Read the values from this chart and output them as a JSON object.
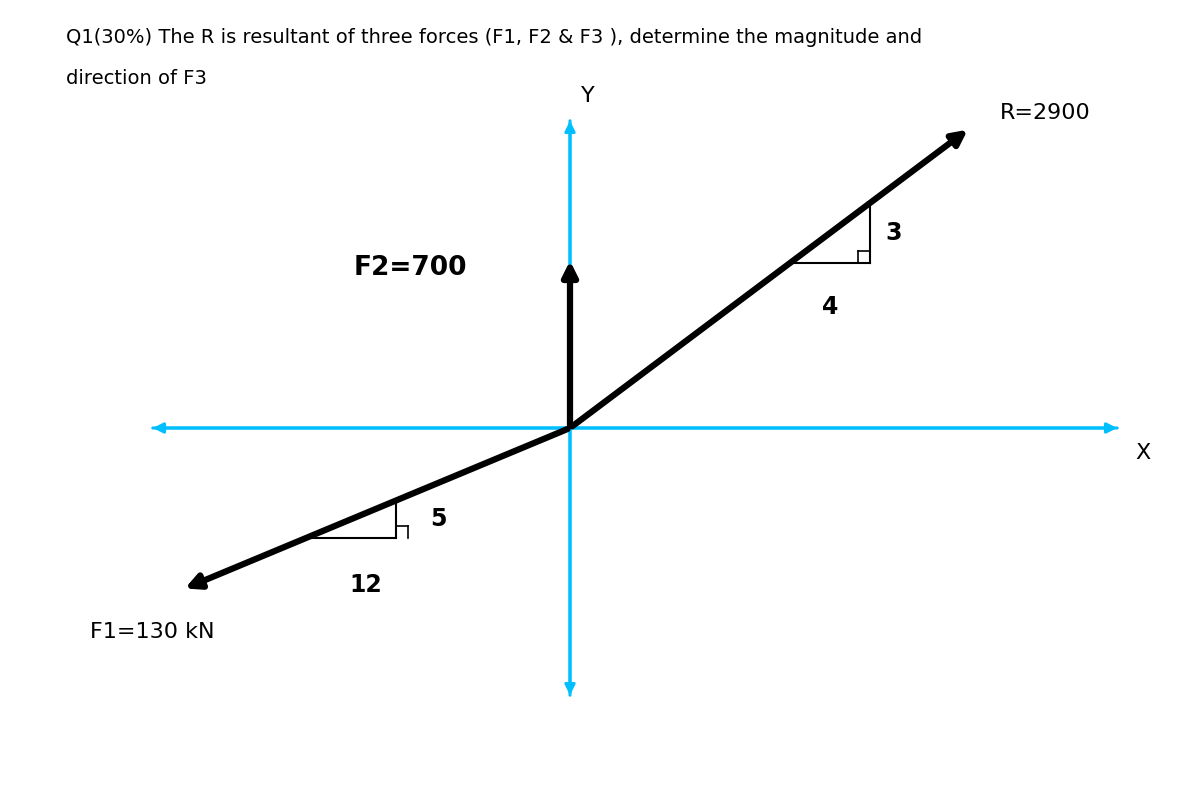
{
  "title_line1": "Q1(30%) The R is resultant of three forces (F1, F2 & F3 ), determine the magnitude and",
  "title_line2": "direction of F3",
  "background_color": "#ffffff",
  "axis_color": "#00bfff",
  "f1_label": "F1=130 kN",
  "f2_label": "F2=700",
  "r_label": "R=2900",
  "f1_color": "#000000",
  "f2_color": "#000000",
  "r_color": "#000000",
  "axis_label_x": "X",
  "axis_label_y": "Y",
  "ratio_label_f1_h": "12",
  "ratio_label_f1_v": "5",
  "ratio_label_r_h": "4",
  "ratio_label_r_v": "3",
  "title_fontsize": 14,
  "label_fontsize": 16,
  "annotation_fontsize": 15
}
